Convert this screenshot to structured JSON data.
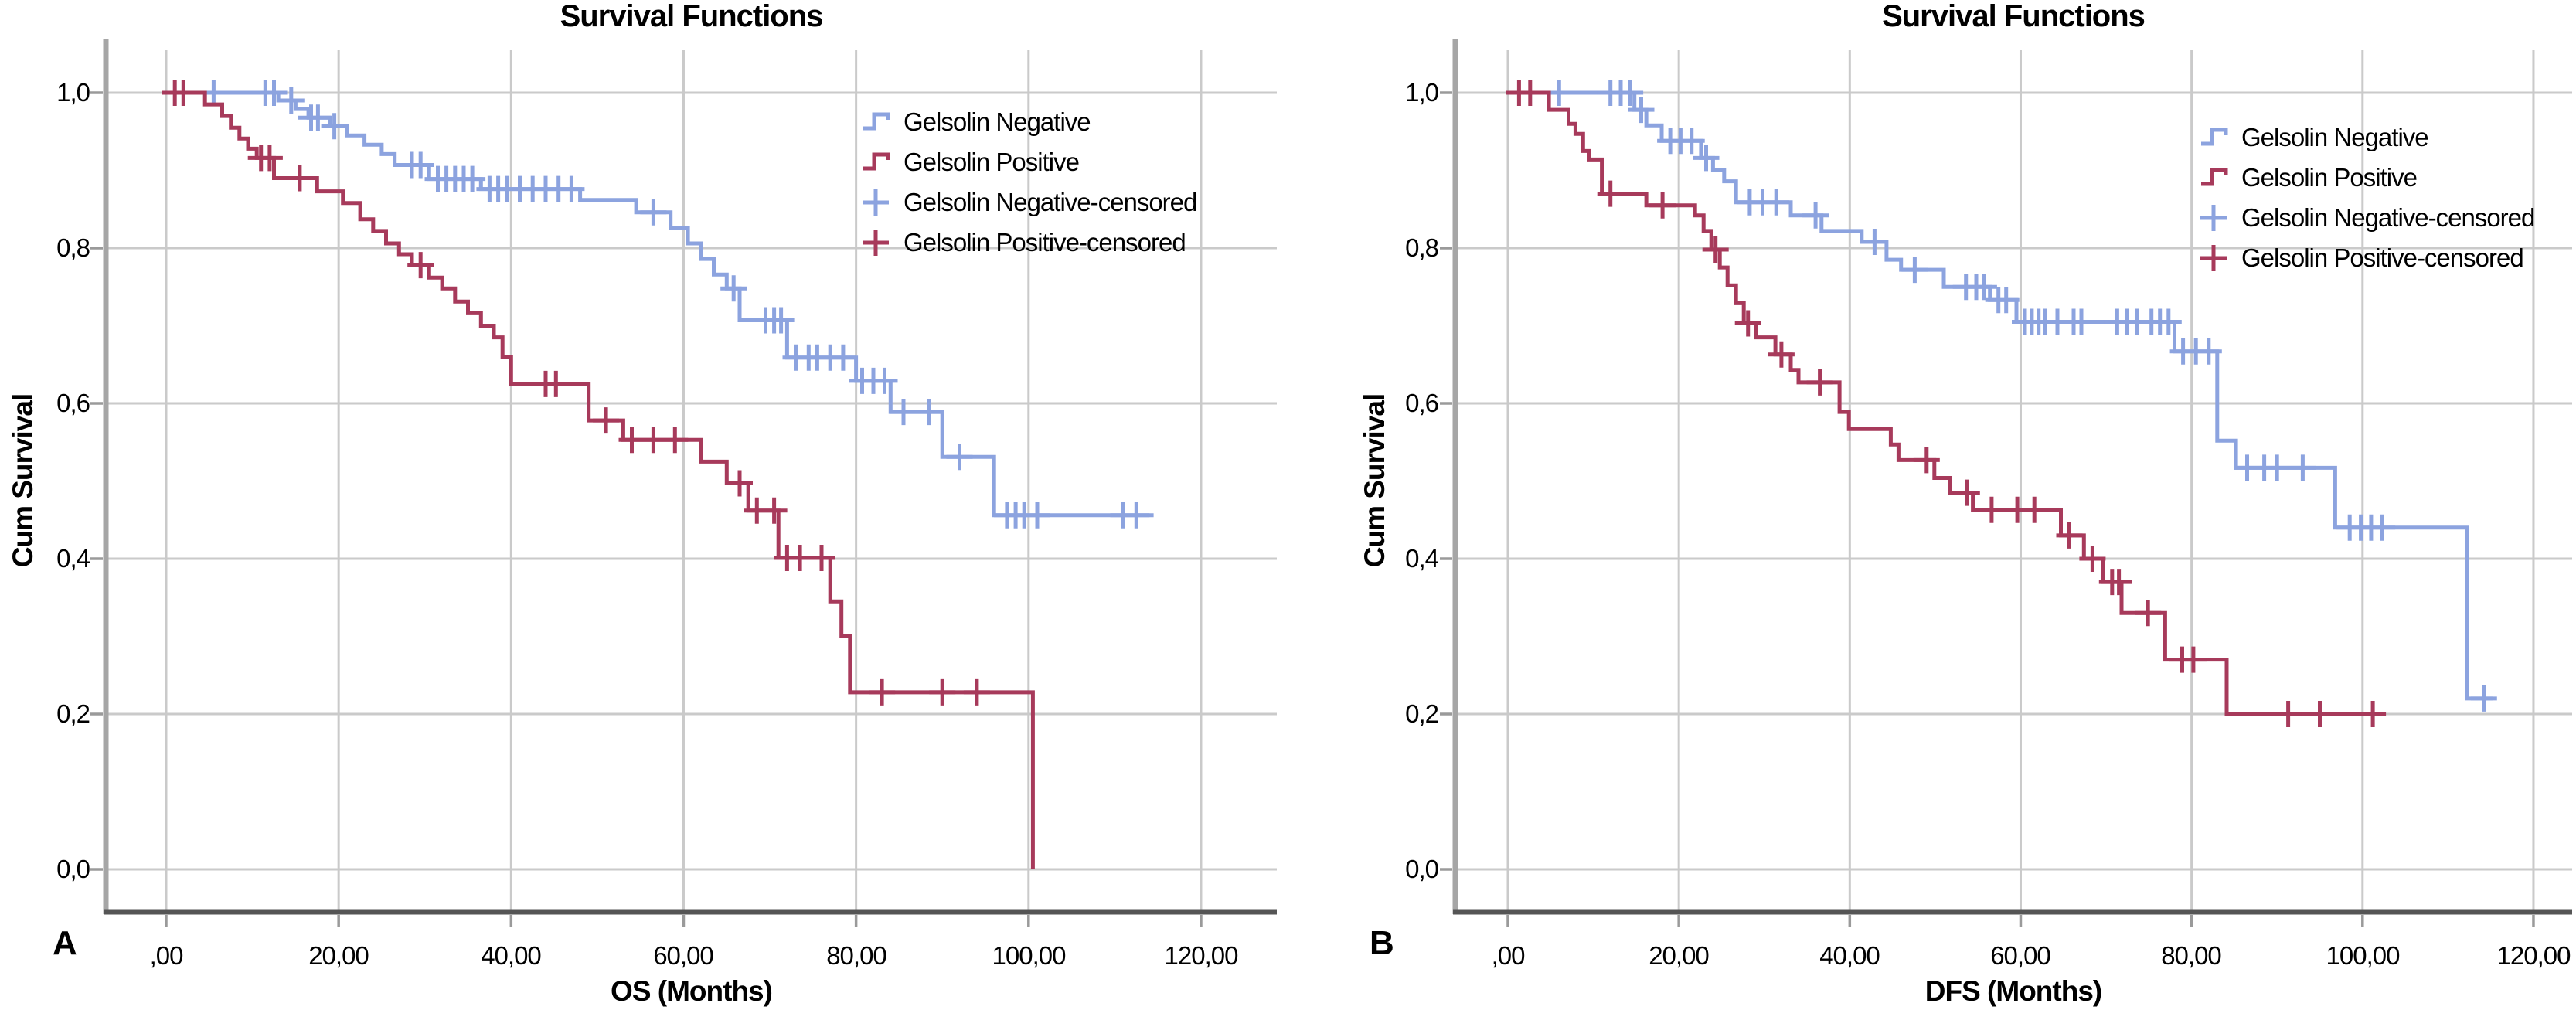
{
  "figure": {
    "title_repeated_on_both_panels": "Survival Functions"
  },
  "colors": {
    "gelsolin_negative": "#8CA3DF",
    "gelsolin_positive": "#A73A5B",
    "gridline": "#CACACA",
    "y_axis": "#A6A6A6",
    "x_axis": "#555555",
    "text": "#000000"
  },
  "panels": [
    {
      "letter": "A",
      "title": "Survival Functions",
      "xlabel": "OS (Months)",
      "ylabel": "Cum Survival",
      "x_tick_labels": [
        ",00",
        "20,00",
        "40,00",
        "60,00",
        "80,00",
        "100,00",
        "120,00"
      ],
      "y_tick_labels": [
        "1,0",
        "0,8",
        "0,6",
        "0,4",
        "0,2",
        "0,0"
      ],
      "legend": [
        "Gelsolin Negative",
        "Gelsolin Positive",
        "Gelsolin Negative-censored",
        "Gelsolin Positive-censored"
      ]
    },
    {
      "letter": "B",
      "title": "Survival Functions",
      "xlabel": "DFS (Months)",
      "ylabel": "Cum Survival",
      "x_tick_labels": [
        ",00",
        "20,00",
        "40,00",
        "60,00",
        "80,00",
        "100,00",
        "120,00"
      ],
      "y_tick_labels": [
        "1,0",
        "0,8",
        "0,6",
        "0,4",
        "0,2",
        "0,0"
      ],
      "legend": [
        "Gelsolin Negative",
        "Gelsolin Positive",
        "Gelsolin Negative-censored",
        "Gelsolin Positive-censored"
      ]
    }
  ],
  "chart_data": [
    {
      "type": "line",
      "subtype": "kaplan-meier-step",
      "title": "Survival Functions",
      "xlabel": "OS (Months)",
      "ylabel": "Cum Survival",
      "x_ticks": [
        0,
        20,
        40,
        60,
        80,
        100,
        120
      ],
      "y_ticks": [
        0.0,
        0.2,
        0.4,
        0.6,
        0.8,
        1.0
      ],
      "xlim": [
        0,
        128
      ],
      "ylim": [
        0,
        1.05
      ],
      "grid": true,
      "legend_position": "inside-top-right",
      "series": [
        {
          "name": "Gelsolin Negative",
          "color": "#8CA3DF",
          "steps": [
            [
              0,
              1.0
            ],
            [
              13,
              0.99
            ],
            [
              15,
              0.979
            ],
            [
              16.5,
              0.968
            ],
            [
              19,
              0.957
            ],
            [
              21,
              0.945
            ],
            [
              23,
              0.933
            ],
            [
              25,
              0.921
            ],
            [
              26.5,
              0.907
            ],
            [
              30.5,
              0.889
            ],
            [
              36.5,
              0.876
            ],
            [
              48,
              0.862
            ],
            [
              54.5,
              0.846
            ],
            [
              58.5,
              0.826
            ],
            [
              60.5,
              0.806
            ],
            [
              62,
              0.786
            ],
            [
              63.5,
              0.766
            ],
            [
              65,
              0.748
            ],
            [
              66.5,
              0.707
            ],
            [
              72,
              0.659
            ],
            [
              80,
              0.629
            ],
            [
              84,
              0.589
            ],
            [
              90,
              0.531
            ],
            [
              96,
              0.456
            ]
          ],
          "end": 114.5,
          "censors": [
            [
              5.5,
              1.0
            ],
            [
              11.5,
              1.0
            ],
            [
              12.5,
              1.0
            ],
            [
              14.5,
              0.99
            ],
            [
              16.8,
              0.968
            ],
            [
              17.6,
              0.968
            ],
            [
              19.5,
              0.957
            ],
            [
              28.5,
              0.907
            ],
            [
              29.5,
              0.907
            ],
            [
              31.5,
              0.889
            ],
            [
              32.5,
              0.889
            ],
            [
              33.5,
              0.889
            ],
            [
              34.5,
              0.889
            ],
            [
              35.5,
              0.889
            ],
            [
              37.5,
              0.876
            ],
            [
              38.5,
              0.876
            ],
            [
              39.5,
              0.876
            ],
            [
              41,
              0.876
            ],
            [
              42.5,
              0.876
            ],
            [
              44,
              0.876
            ],
            [
              45.5,
              0.876
            ],
            [
              47,
              0.876
            ],
            [
              56.5,
              0.846
            ],
            [
              65.8,
              0.748
            ],
            [
              69.5,
              0.707
            ],
            [
              70.5,
              0.707
            ],
            [
              71.3,
              0.707
            ],
            [
              73,
              0.659
            ],
            [
              74.5,
              0.659
            ],
            [
              75.5,
              0.659
            ],
            [
              77,
              0.659
            ],
            [
              78.5,
              0.659
            ],
            [
              80.7,
              0.629
            ],
            [
              82,
              0.629
            ],
            [
              83.3,
              0.629
            ],
            [
              85.5,
              0.589
            ],
            [
              88.5,
              0.589
            ],
            [
              92,
              0.531
            ],
            [
              97.5,
              0.456
            ],
            [
              98.5,
              0.456
            ],
            [
              99.5,
              0.456
            ],
            [
              101,
              0.456
            ],
            [
              111,
              0.456
            ],
            [
              112.5,
              0.456
            ]
          ]
        },
        {
          "name": "Gelsolin Positive",
          "color": "#A73A5B",
          "steps": [
            [
              0,
              1.0
            ],
            [
              4.5,
              0.985
            ],
            [
              6.5,
              0.97
            ],
            [
              7.5,
              0.955
            ],
            [
              8.5,
              0.941
            ],
            [
              9.5,
              0.928
            ],
            [
              10.5,
              0.916
            ],
            [
              12.5,
              0.89
            ],
            [
              17.5,
              0.873
            ],
            [
              20.5,
              0.858
            ],
            [
              22.5,
              0.837
            ],
            [
              24,
              0.822
            ],
            [
              25.5,
              0.806
            ],
            [
              27,
              0.792
            ],
            [
              28.5,
              0.778
            ],
            [
              30.5,
              0.762
            ],
            [
              32,
              0.748
            ],
            [
              33.5,
              0.731
            ],
            [
              35,
              0.716
            ],
            [
              36.5,
              0.7
            ],
            [
              38,
              0.685
            ],
            [
              39,
              0.66
            ],
            [
              40,
              0.625
            ],
            [
              49,
              0.578
            ],
            [
              53,
              0.553
            ],
            [
              62,
              0.525
            ],
            [
              65,
              0.497
            ],
            [
              67.5,
              0.462
            ],
            [
              71,
              0.401
            ],
            [
              77,
              0.345
            ],
            [
              78.3,
              0.3
            ],
            [
              79.3,
              0.228
            ],
            [
              100.5,
              0.0
            ]
          ],
          "end": 100.5,
          "censors": [
            [
              1,
              1.0
            ],
            [
              2,
              1.0
            ],
            [
              11,
              0.916
            ],
            [
              12,
              0.916
            ],
            [
              15.5,
              0.89
            ],
            [
              29.5,
              0.778
            ],
            [
              44,
              0.625
            ],
            [
              45.2,
              0.625
            ],
            [
              51,
              0.578
            ],
            [
              54,
              0.553
            ],
            [
              56.5,
              0.553
            ],
            [
              59,
              0.553
            ],
            [
              66.5,
              0.497
            ],
            [
              68.5,
              0.462
            ],
            [
              70.5,
              0.462
            ],
            [
              72,
              0.401
            ],
            [
              73.5,
              0.401
            ],
            [
              76,
              0.401
            ],
            [
              83,
              0.228
            ],
            [
              90,
              0.228
            ],
            [
              94,
              0.228
            ]
          ]
        }
      ]
    },
    {
      "type": "line",
      "subtype": "kaplan-meier-step",
      "title": "Survival Functions",
      "xlabel": "DFS (Months)",
      "ylabel": "Cum Survival",
      "x_ticks": [
        0,
        20,
        40,
        60,
        80,
        100,
        120
      ],
      "y_ticks": [
        0.0,
        0.2,
        0.4,
        0.6,
        0.8,
        1.0
      ],
      "xlim": [
        0,
        128
      ],
      "ylim": [
        0,
        1.05
      ],
      "grid": true,
      "legend_position": "inside-top-right",
      "series": [
        {
          "name": "Gelsolin Negative",
          "color": "#8CA3DF",
          "steps": [
            [
              0,
              1.0
            ],
            [
              14.8,
              0.978
            ],
            [
              16.2,
              0.958
            ],
            [
              18,
              0.938
            ],
            [
              22.6,
              0.916
            ],
            [
              24,
              0.9
            ],
            [
              25.3,
              0.886
            ],
            [
              26.7,
              0.859
            ],
            [
              33.1,
              0.842
            ],
            [
              36.7,
              0.822
            ],
            [
              41.4,
              0.808
            ],
            [
              44.3,
              0.785
            ],
            [
              46,
              0.772
            ],
            [
              51,
              0.75
            ],
            [
              56.4,
              0.733
            ],
            [
              59.5,
              0.705
            ],
            [
              78,
              0.667
            ],
            [
              83,
              0.552
            ],
            [
              85.2,
              0.517
            ],
            [
              96.8,
              0.44
            ],
            [
              112.2,
              0.22
            ]
          ],
          "end": 115.2,
          "censors": [
            [
              6,
              1.0
            ],
            [
              12,
              1.0
            ],
            [
              13.2,
              1.0
            ],
            [
              14.3,
              1.0
            ],
            [
              15.6,
              0.978
            ],
            [
              19,
              0.938
            ],
            [
              20.2,
              0.938
            ],
            [
              21.5,
              0.938
            ],
            [
              23.2,
              0.916
            ],
            [
              28.3,
              0.859
            ],
            [
              29.8,
              0.859
            ],
            [
              31.4,
              0.859
            ],
            [
              36,
              0.842
            ],
            [
              42.9,
              0.808
            ],
            [
              47.6,
              0.772
            ],
            [
              53.6,
              0.75
            ],
            [
              54.8,
              0.75
            ],
            [
              55.7,
              0.75
            ],
            [
              57.4,
              0.733
            ],
            [
              58.3,
              0.733
            ],
            [
              60.5,
              0.705
            ],
            [
              61.3,
              0.705
            ],
            [
              62.1,
              0.705
            ],
            [
              62.9,
              0.705
            ],
            [
              64.3,
              0.705
            ],
            [
              66.2,
              0.705
            ],
            [
              67.1,
              0.705
            ],
            [
              71.3,
              0.705
            ],
            [
              72.4,
              0.705
            ],
            [
              73.6,
              0.705
            ],
            [
              75.3,
              0.705
            ],
            [
              76.3,
              0.705
            ],
            [
              77.3,
              0.705
            ],
            [
              79,
              0.667
            ],
            [
              80.5,
              0.667
            ],
            [
              82,
              0.667
            ],
            [
              86.5,
              0.517
            ],
            [
              88.5,
              0.517
            ],
            [
              90,
              0.517
            ],
            [
              93,
              0.517
            ],
            [
              98.5,
              0.44
            ],
            [
              99.8,
              0.44
            ],
            [
              101,
              0.44
            ],
            [
              102.3,
              0.44
            ],
            [
              114.2,
              0.22
            ]
          ]
        },
        {
          "name": "Gelsolin Positive",
          "color": "#A73A5B",
          "steps": [
            [
              0,
              1.0
            ],
            [
              4.8,
              0.978
            ],
            [
              7.1,
              0.96
            ],
            [
              7.9,
              0.947
            ],
            [
              8.8,
              0.925
            ],
            [
              9.5,
              0.914
            ],
            [
              11,
              0.87
            ],
            [
              16.2,
              0.855
            ],
            [
              21.9,
              0.842
            ],
            [
              22.9,
              0.822
            ],
            [
              23.8,
              0.798
            ],
            [
              24.8,
              0.775
            ],
            [
              25.7,
              0.752
            ],
            [
              26.7,
              0.729
            ],
            [
              27.6,
              0.703
            ],
            [
              29,
              0.685
            ],
            [
              31.3,
              0.663
            ],
            [
              33.1,
              0.643
            ],
            [
              34,
              0.627
            ],
            [
              38.8,
              0.589
            ],
            [
              39.9,
              0.567
            ],
            [
              44.8,
              0.547
            ],
            [
              45.7,
              0.527
            ],
            [
              49.9,
              0.504
            ],
            [
              51.7,
              0.485
            ],
            [
              54.4,
              0.463
            ],
            [
              64.7,
              0.43
            ],
            [
              67.4,
              0.4
            ],
            [
              69.6,
              0.37
            ],
            [
              71.8,
              0.33
            ],
            [
              76.9,
              0.27
            ],
            [
              84.1,
              0.2
            ]
          ],
          "end": 102,
          "censors": [
            [
              1.3,
              1.0
            ],
            [
              2.6,
              1.0
            ],
            [
              12,
              0.87
            ],
            [
              18.1,
              0.855
            ],
            [
              24.3,
              0.798
            ],
            [
              28.1,
              0.703
            ],
            [
              32,
              0.663
            ],
            [
              36.5,
              0.627
            ],
            [
              49,
              0.527
            ],
            [
              53.7,
              0.485
            ],
            [
              56.6,
              0.463
            ],
            [
              59.6,
              0.463
            ],
            [
              61.6,
              0.463
            ],
            [
              65.7,
              0.43
            ],
            [
              68.4,
              0.4
            ],
            [
              70.7,
              0.37
            ],
            [
              71.5,
              0.37
            ],
            [
              74.9,
              0.33
            ],
            [
              78.9,
              0.27
            ],
            [
              80.2,
              0.27
            ],
            [
              91.3,
              0.2
            ],
            [
              95,
              0.2
            ],
            [
              101.2,
              0.2
            ]
          ]
        }
      ]
    }
  ]
}
